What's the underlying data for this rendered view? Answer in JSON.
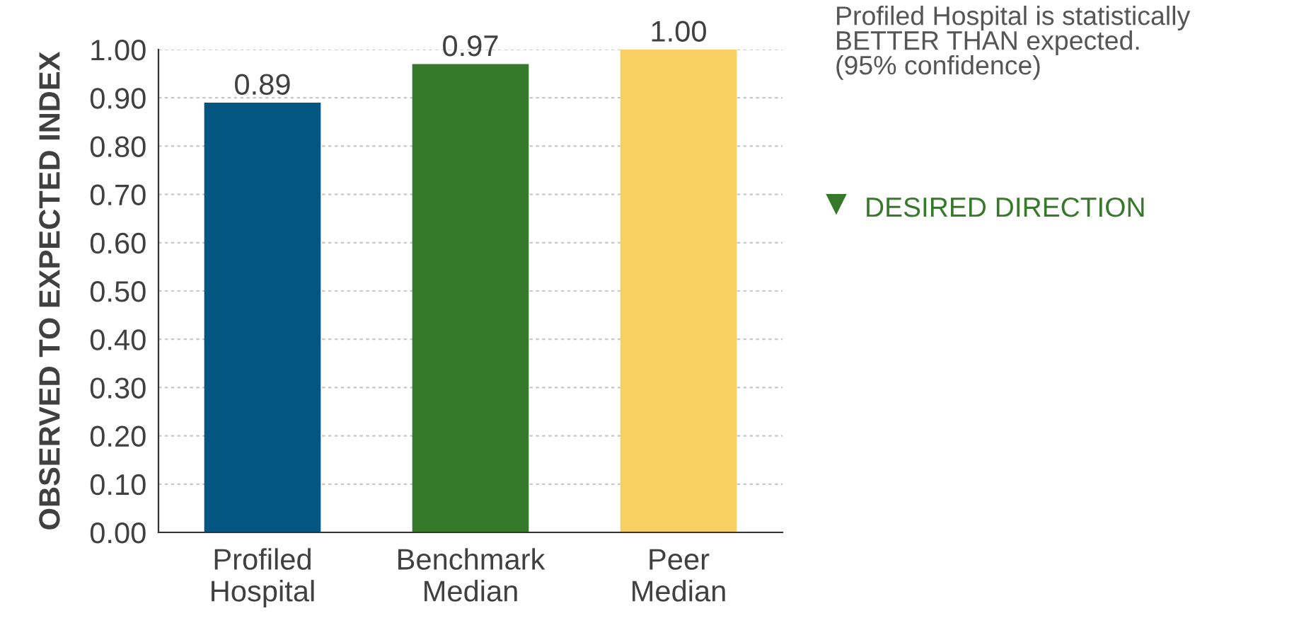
{
  "chart_data": {
    "type": "bar",
    "ylabel": "OBSERVED TO EXPECTED INDEX",
    "categories": [
      "Profiled\nHospital",
      "Benchmark\nMedian",
      "Peer\nMedian"
    ],
    "values": [
      0.89,
      0.97,
      1.0
    ],
    "colors": [
      "#02567f",
      "#37792a",
      "#f8cf62"
    ],
    "value_labels": [
      "0.89",
      "0.97",
      "1.00"
    ],
    "ylim": [
      0,
      1
    ],
    "yticks": [
      {
        "value": 0,
        "label": "0.00"
      },
      {
        "value": 0.1,
        "label": "0.10"
      },
      {
        "value": 0.2,
        "label": "0.20"
      },
      {
        "value": 0.3,
        "label": "0.30"
      },
      {
        "value": 0.4,
        "label": "0.40"
      },
      {
        "value": 0.5,
        "label": "0.50"
      },
      {
        "value": 0.6,
        "label": "0.60"
      },
      {
        "value": 0.7,
        "label": "0.70"
      },
      {
        "value": 0.8,
        "label": "0.80"
      },
      {
        "value": 0.9,
        "label": "0.90"
      },
      {
        "value": 1,
        "label": "1.00"
      }
    ],
    "grid": "y",
    "annotations": [
      "Profiled Hospital is statistically\nBETTER THAN expected.\n(95% confidence)",
      "DESIRED DIRECTION"
    ]
  }
}
